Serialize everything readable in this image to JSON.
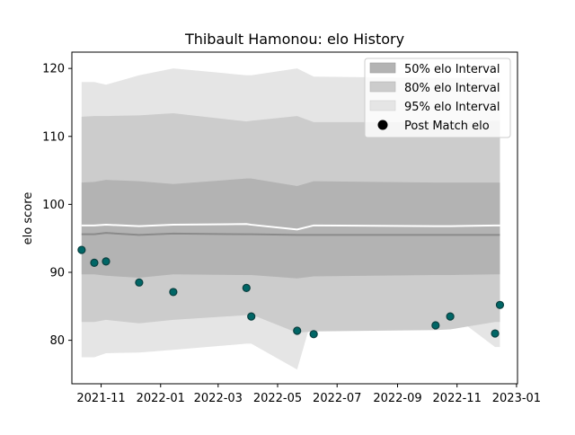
{
  "chart_data": {
    "type": "line",
    "title": "Thibault Hamonou: elo History",
    "xlabel": "",
    "ylabel": "elo score",
    "x_ticks": [
      "2021-11",
      "2022-01",
      "2022-03",
      "2022-05",
      "2022-07",
      "2022-09",
      "2022-11",
      "2023-01"
    ],
    "x_tick_dates": [
      "2021-11-01",
      "2022-01-01",
      "2022-03-01",
      "2022-05-01",
      "2022-07-01",
      "2022-09-01",
      "2022-11-01",
      "2023-01-01"
    ],
    "y_ticks": [
      80,
      90,
      100,
      110,
      120
    ],
    "xlim": [
      "2021-10-02",
      "2023-01-02"
    ],
    "ylim": [
      73.6,
      122.4
    ],
    "grid": false,
    "legend_position": "upper right",
    "legend": [
      "50% elo Interval",
      "80% elo Interval",
      "95% elo Interval",
      "Post Match elo"
    ],
    "colors": {
      "band50": "#b3b3b3",
      "band80": "#cccccc",
      "band95": "#e5e5e5",
      "mean_line": "#8a8a8a",
      "median_line": "#ffffff",
      "point_fill": "#006666",
      "point_edge": "#0b3f3f"
    },
    "series": [
      {
        "name": "95% elo Interval",
        "x": [
          "2021-10-12",
          "2021-10-25",
          "2021-11-06",
          "2021-12-10",
          "2022-01-14",
          "2022-03-30",
          "2022-04-04",
          "2022-05-21",
          "2022-06-07",
          "2022-10-10",
          "2022-10-25",
          "2022-12-10",
          "2022-12-15"
        ],
        "lower": [
          77.5,
          77.5,
          78.1,
          78.2,
          78.6,
          79.5,
          79.5,
          75.7,
          84.1,
          84.0,
          84.0,
          79.0,
          79.0
        ],
        "upper": [
          118.0,
          118.0,
          117.6,
          119.0,
          120.0,
          119.0,
          119.0,
          120.0,
          118.8,
          118.6,
          118.6,
          118.6,
          118.6
        ]
      },
      {
        "name": "80% elo Interval",
        "x": [
          "2021-10-12",
          "2021-10-25",
          "2021-11-06",
          "2021-12-10",
          "2022-01-14",
          "2022-03-30",
          "2022-04-04",
          "2022-05-21",
          "2022-06-07",
          "2022-10-10",
          "2022-10-25",
          "2022-12-10",
          "2022-12-15"
        ],
        "lower": [
          82.7,
          82.7,
          83.0,
          82.5,
          83.0,
          83.7,
          83.8,
          81.1,
          81.3,
          81.5,
          81.6,
          82.7,
          82.7
        ],
        "upper": [
          112.9,
          113.0,
          113.0,
          113.1,
          113.4,
          112.2,
          112.3,
          113.0,
          112.1,
          112.1,
          112.1,
          112.3,
          112.3
        ]
      },
      {
        "name": "50% elo Interval",
        "x": [
          "2021-10-12",
          "2021-10-25",
          "2021-11-06",
          "2021-12-10",
          "2022-01-14",
          "2022-03-30",
          "2022-04-04",
          "2022-05-21",
          "2022-06-07",
          "2022-10-10",
          "2022-10-25",
          "2022-12-10",
          "2022-12-15"
        ],
        "lower": [
          89.7,
          89.7,
          89.5,
          89.2,
          89.7,
          89.6,
          89.6,
          89.1,
          89.4,
          89.6,
          89.6,
          89.7,
          89.7
        ],
        "upper": [
          103.2,
          103.3,
          103.6,
          103.4,
          103.0,
          103.8,
          103.8,
          102.7,
          103.4,
          103.2,
          103.2,
          103.2,
          103.2
        ]
      },
      {
        "name": "mean",
        "x": [
          "2021-10-12",
          "2021-10-25",
          "2021-11-06",
          "2021-12-10",
          "2022-01-14",
          "2022-03-30",
          "2022-04-04",
          "2022-05-21",
          "2022-06-07",
          "2022-10-10",
          "2022-10-25",
          "2022-12-10",
          "2022-12-15"
        ],
        "y": [
          95.6,
          95.6,
          95.8,
          95.5,
          95.7,
          95.6,
          95.6,
          95.5,
          95.5,
          95.5,
          95.5,
          95.5,
          95.5
        ]
      },
      {
        "name": "median",
        "x": [
          "2021-10-12",
          "2021-10-25",
          "2021-11-06",
          "2021-12-10",
          "2022-01-14",
          "2022-03-30",
          "2022-04-04",
          "2022-05-21",
          "2022-06-07",
          "2022-10-10",
          "2022-10-25",
          "2022-12-10",
          "2022-12-15"
        ],
        "y": [
          96.9,
          96.9,
          97.0,
          96.8,
          97.0,
          97.1,
          97.0,
          96.3,
          96.9,
          96.8,
          96.8,
          96.9,
          96.9
        ]
      },
      {
        "name": "Post Match elo",
        "x": [
          "2021-10-12",
          "2021-10-25",
          "2021-11-06",
          "2021-12-10",
          "2022-01-14",
          "2022-03-30",
          "2022-04-04",
          "2022-05-21",
          "2022-06-07",
          "2022-10-10",
          "2022-10-25",
          "2022-12-10",
          "2022-12-15"
        ],
        "y": [
          93.3,
          91.4,
          91.6,
          88.5,
          87.1,
          87.7,
          83.5,
          81.4,
          80.9,
          82.2,
          83.5,
          81.0,
          85.2
        ]
      }
    ]
  }
}
